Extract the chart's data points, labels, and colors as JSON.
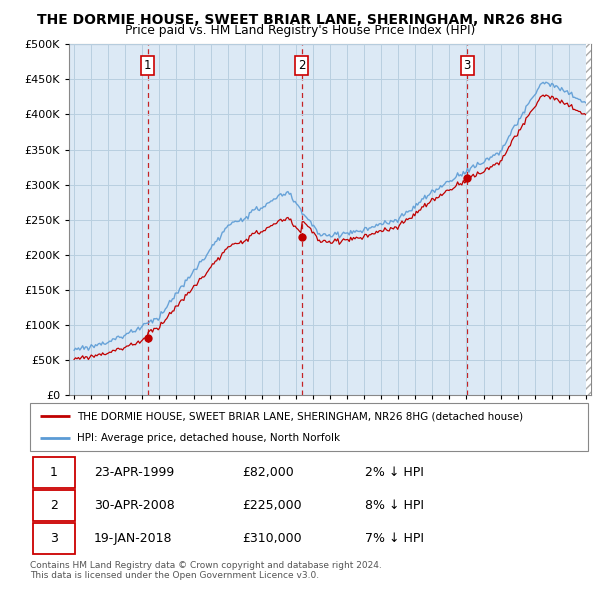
{
  "title": "THE DORMIE HOUSE, SWEET BRIAR LANE, SHERINGHAM, NR26 8HG",
  "subtitle": "Price paid vs. HM Land Registry's House Price Index (HPI)",
  "ylim": [
    0,
    500000
  ],
  "yticks": [
    0,
    50000,
    100000,
    150000,
    200000,
    250000,
    300000,
    350000,
    400000,
    450000,
    500000
  ],
  "xlim_start": 1994.7,
  "xlim_end": 2025.3,
  "sale_dates": [
    1999.31,
    2008.33,
    2018.05
  ],
  "sale_prices": [
    82000,
    225000,
    310000
  ],
  "sale_labels": [
    "1",
    "2",
    "3"
  ],
  "hpi_color": "#5b9bd5",
  "sale_color": "#c00000",
  "vline_color": "#c00000",
  "chart_bg": "#dce9f5",
  "legend_entry1": "THE DORMIE HOUSE, SWEET BRIAR LANE, SHERINGHAM, NR26 8HG (detached house)",
  "legend_entry2": "HPI: Average price, detached house, North Norfolk",
  "table_rows": [
    [
      "1",
      "23-APR-1999",
      "£82,000",
      "2% ↓ HPI"
    ],
    [
      "2",
      "30-APR-2008",
      "£225,000",
      "8% ↓ HPI"
    ],
    [
      "3",
      "19-JAN-2018",
      "£310,000",
      "7% ↓ HPI"
    ]
  ],
  "footer": "Contains HM Land Registry data © Crown copyright and database right 2024.\nThis data is licensed under the Open Government Licence v3.0.",
  "background_color": "#ffffff",
  "grid_color": "#b8cfe0"
}
